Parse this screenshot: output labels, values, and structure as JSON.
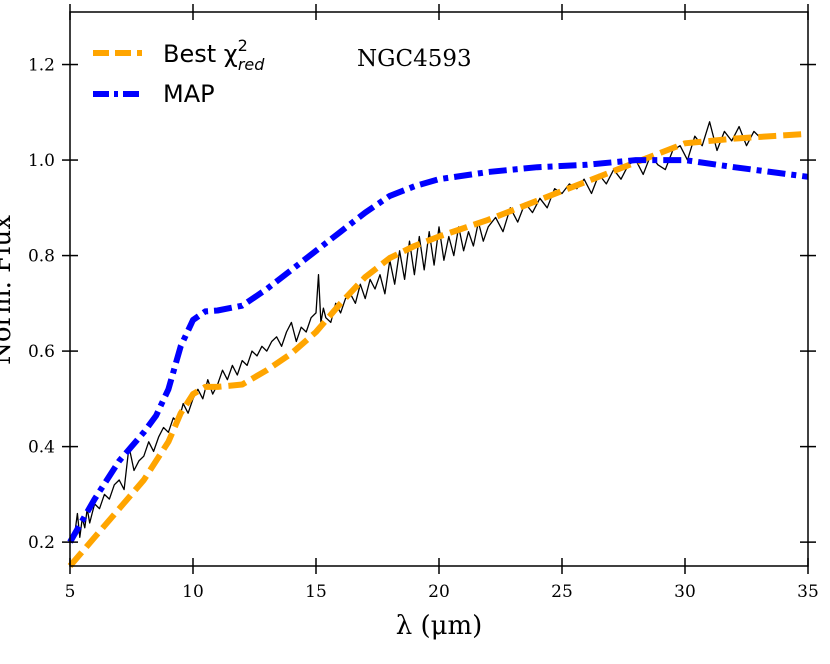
{
  "chart_data": {
    "type": "line",
    "title": "",
    "annotation": "NGC4593",
    "xlabel": "λ (μm)",
    "ylabel": "Norm. Flux",
    "xlim": [
      5,
      35
    ],
    "ylim": [
      0.15,
      1.31
    ],
    "xticks": [
      5,
      10,
      15,
      20,
      25,
      30,
      35
    ],
    "yticks": [
      0.2,
      0.4,
      0.6,
      0.8,
      1.0,
      1.2
    ],
    "ytick_labels": [
      "0.2",
      "0.4",
      "0.6",
      "0.8",
      "1.0",
      "1.2"
    ],
    "grid": false,
    "legend_position": "top-left",
    "legend": [
      {
        "name": "best",
        "label_main": "Best χ",
        "label_sup": "2",
        "label_sub": "red"
      },
      {
        "name": "map",
        "label_main": "MAP"
      }
    ],
    "colors": {
      "best": "#FFA500",
      "map": "#0000FF",
      "observed": "#000000"
    },
    "series": [
      {
        "name": "Best chi2_red",
        "style": "dashed",
        "x": [
          5.0,
          5.5,
          6.0,
          7.0,
          8.0,
          8.5,
          9.0,
          9.5,
          10.0,
          10.5,
          11.0,
          12.0,
          13.0,
          14.0,
          15.0,
          16.0,
          17.0,
          18.0,
          19.0,
          20.0,
          22.0,
          24.0,
          26.0,
          28.0,
          30.0,
          32.0,
          35.0
        ],
        "y": [
          0.15,
          0.18,
          0.21,
          0.27,
          0.33,
          0.37,
          0.41,
          0.47,
          0.51,
          0.525,
          0.525,
          0.53,
          0.56,
          0.595,
          0.64,
          0.7,
          0.755,
          0.795,
          0.82,
          0.84,
          0.875,
          0.915,
          0.955,
          0.995,
          1.035,
          1.045,
          1.055
        ]
      },
      {
        "name": "MAP",
        "style": "dashdot",
        "x": [
          5.0,
          6.0,
          7.0,
          8.0,
          8.5,
          9.0,
          9.5,
          10.0,
          10.5,
          11.0,
          12.0,
          13.0,
          14.0,
          15.0,
          16.0,
          17.0,
          18.0,
          19.0,
          20.0,
          22.0,
          24.0,
          26.0,
          28.0,
          30.0,
          32.0,
          35.0
        ],
        "y": [
          0.2,
          0.29,
          0.37,
          0.43,
          0.465,
          0.52,
          0.61,
          0.665,
          0.683,
          0.685,
          0.695,
          0.73,
          0.77,
          0.81,
          0.85,
          0.89,
          0.925,
          0.945,
          0.96,
          0.975,
          0.985,
          0.99,
          1.0,
          1.0,
          0.985,
          0.965
        ]
      },
      {
        "name": "Observed",
        "style": "solid",
        "x": [
          5.2,
          5.3,
          5.4,
          5.5,
          5.6,
          5.7,
          5.8,
          5.9,
          6.0,
          6.2,
          6.4,
          6.6,
          6.8,
          7.0,
          7.2,
          7.4,
          7.6,
          7.8,
          8.0,
          8.2,
          8.4,
          8.6,
          8.8,
          9.0,
          9.2,
          9.4,
          9.6,
          9.8,
          10.0,
          10.2,
          10.4,
          10.6,
          10.8,
          11.0,
          11.2,
          11.4,
          11.6,
          11.8,
          12.0,
          12.2,
          12.4,
          12.6,
          12.8,
          13.0,
          13.2,
          13.4,
          13.6,
          13.8,
          14.0,
          14.2,
          14.4,
          14.6,
          14.8,
          15.0,
          15.1,
          15.2,
          15.3,
          15.4,
          15.6,
          15.8,
          16.0,
          16.2,
          16.4,
          16.6,
          16.8,
          17.0,
          17.2,
          17.4,
          17.6,
          17.8,
          18.0,
          18.2,
          18.4,
          18.6,
          18.8,
          19.0,
          19.2,
          19.4,
          19.6,
          19.8,
          20.0,
          20.2,
          20.4,
          20.6,
          20.8,
          21.0,
          21.2,
          21.4,
          21.6,
          21.8,
          22.0,
          22.3,
          22.6,
          22.9,
          23.2,
          23.5,
          23.8,
          24.1,
          24.4,
          24.7,
          25.0,
          25.3,
          25.6,
          25.9,
          26.2,
          26.5,
          26.8,
          27.1,
          27.4,
          27.7,
          28.0,
          28.3,
          28.6,
          28.9,
          29.2,
          29.5,
          29.8,
          30.1,
          30.4,
          30.7,
          31.0,
          31.3,
          31.6,
          31.9,
          32.2,
          32.5,
          32.8,
          33.0
        ],
        "y": [
          0.22,
          0.26,
          0.21,
          0.25,
          0.23,
          0.27,
          0.24,
          0.26,
          0.28,
          0.27,
          0.3,
          0.29,
          0.32,
          0.33,
          0.31,
          0.4,
          0.35,
          0.37,
          0.38,
          0.41,
          0.39,
          0.42,
          0.44,
          0.43,
          0.46,
          0.45,
          0.49,
          0.47,
          0.5,
          0.52,
          0.5,
          0.54,
          0.51,
          0.53,
          0.56,
          0.54,
          0.57,
          0.55,
          0.58,
          0.57,
          0.6,
          0.59,
          0.61,
          0.6,
          0.62,
          0.63,
          0.61,
          0.64,
          0.66,
          0.62,
          0.65,
          0.64,
          0.67,
          0.68,
          0.76,
          0.66,
          0.69,
          0.67,
          0.66,
          0.7,
          0.68,
          0.71,
          0.72,
          0.7,
          0.74,
          0.71,
          0.75,
          0.73,
          0.76,
          0.72,
          0.79,
          0.74,
          0.81,
          0.75,
          0.83,
          0.76,
          0.84,
          0.77,
          0.85,
          0.78,
          0.86,
          0.79,
          0.84,
          0.8,
          0.86,
          0.81,
          0.85,
          0.82,
          0.87,
          0.83,
          0.86,
          0.88,
          0.85,
          0.9,
          0.87,
          0.91,
          0.89,
          0.92,
          0.9,
          0.94,
          0.93,
          0.95,
          0.94,
          0.96,
          0.93,
          0.97,
          0.95,
          0.98,
          0.96,
          0.99,
          1.0,
          0.97,
          1.01,
          0.99,
          0.98,
          1.02,
          1.03,
          1.0,
          1.05,
          1.03,
          1.08,
          1.02,
          1.06,
          1.04,
          1.07,
          1.03,
          1.06,
          1.05
        ]
      }
    ]
  }
}
